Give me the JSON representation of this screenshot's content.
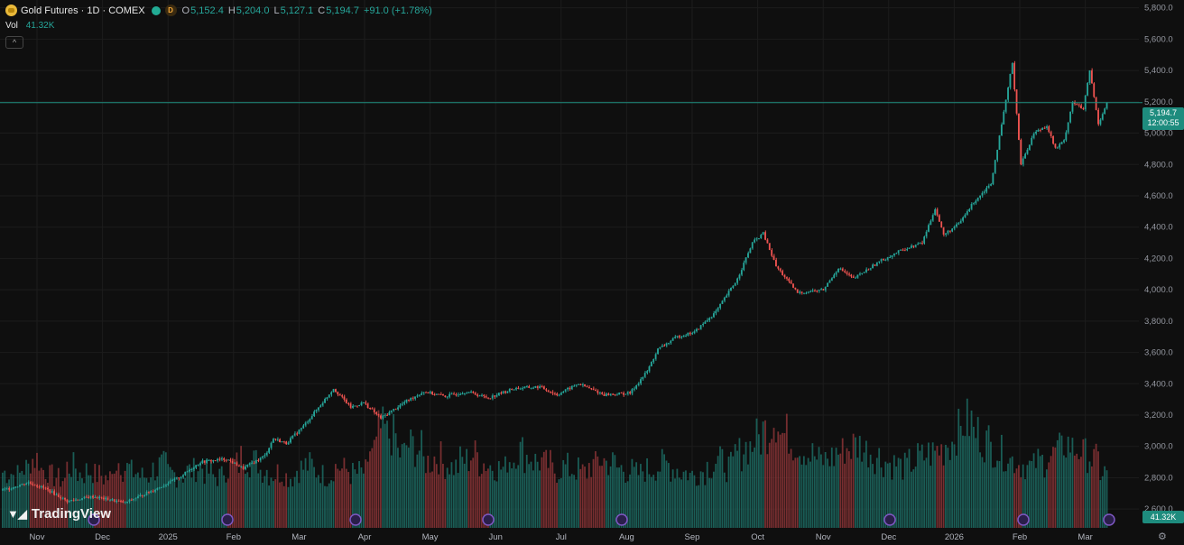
{
  "header": {
    "title": "Gold Futures · 1D · COMEX",
    "d_badge": "D",
    "ohlc": [
      {
        "k": "O",
        "v": "5,152.4"
      },
      {
        "k": "H",
        "v": "5,204.0"
      },
      {
        "k": "L",
        "v": "5,127.1"
      },
      {
        "k": "C",
        "v": "5,194.7"
      },
      {
        "k": "",
        "v": "+91.0 (+1.78%)"
      }
    ]
  },
  "volume_legend": {
    "label": "Vol",
    "value": "41.32K"
  },
  "collapse_icon": "^",
  "price_tag": {
    "price": "5,194.7",
    "countdown": "12:00:55"
  },
  "volume_tag": "41.32K",
  "logo_text": "TradingView",
  "colors": {
    "up": "#26a69a",
    "down": "#ef5350",
    "bg": "#0f0f0f",
    "grid": "#1c1c1c",
    "price_line": "#1e8c7e"
  },
  "chart_data": {
    "type": "candlestick",
    "title": "Gold Futures · 1D · COMEX",
    "ylim": [
      2480,
      5850
    ],
    "y_ticks": [
      "5,800.0",
      "5,600.0",
      "5,400.0",
      "5,200.0",
      "5,000.0",
      "4,800.0",
      "4,600.0",
      "4,400.0",
      "4,200.0",
      "4,000.0",
      "3,800.0",
      "3,600.0",
      "3,400.0",
      "3,200.0",
      "3,000.0",
      "2,800.0",
      "2,600.0"
    ],
    "x_ticks": [
      "Nov",
      "Dec",
      "2025",
      "Feb",
      "Mar",
      "Apr",
      "May",
      "Jun",
      "Jul",
      "Aug",
      "Sep",
      "Oct",
      "Nov",
      "Dec",
      "2026",
      "Feb",
      "Mar"
    ],
    "last_price": 5194.7,
    "price_path": [
      [
        0,
        2720
      ],
      [
        12,
        2770
      ],
      [
        20,
        2730
      ],
      [
        30,
        2650
      ],
      [
        42,
        2680
      ],
      [
        57,
        2640
      ],
      [
        70,
        2720
      ],
      [
        82,
        2800
      ],
      [
        92,
        2900
      ],
      [
        104,
        2920
      ],
      [
        112,
        2860
      ],
      [
        122,
        2940
      ],
      [
        126,
        3050
      ],
      [
        132,
        3020
      ],
      [
        140,
        3130
      ],
      [
        150,
        3300
      ],
      [
        154,
        3370
      ],
      [
        162,
        3250
      ],
      [
        168,
        3280
      ],
      [
        176,
        3180
      ],
      [
        188,
        3290
      ],
      [
        196,
        3350
      ],
      [
        206,
        3320
      ],
      [
        216,
        3350
      ],
      [
        226,
        3310
      ],
      [
        238,
        3370
      ],
      [
        250,
        3380
      ],
      [
        258,
        3330
      ],
      [
        268,
        3400
      ],
      [
        280,
        3330
      ],
      [
        292,
        3340
      ],
      [
        300,
        3480
      ],
      [
        305,
        3620
      ],
      [
        314,
        3700
      ],
      [
        322,
        3730
      ],
      [
        332,
        3860
      ],
      [
        342,
        4070
      ],
      [
        349,
        4300
      ],
      [
        354,
        4360
      ],
      [
        360,
        4150
      ],
      [
        370,
        3980
      ],
      [
        382,
        4000
      ],
      [
        389,
        4140
      ],
      [
        396,
        4070
      ],
      [
        408,
        4180
      ],
      [
        418,
        4250
      ],
      [
        428,
        4300
      ],
      [
        434,
        4520
      ],
      [
        438,
        4350
      ],
      [
        445,
        4420
      ],
      [
        452,
        4560
      ],
      [
        460,
        4680
      ],
      [
        465,
        5050
      ],
      [
        470,
        5450
      ],
      [
        474,
        4800
      ],
      [
        480,
        5000
      ],
      [
        486,
        5050
      ],
      [
        490,
        4900
      ],
      [
        494,
        4950
      ],
      [
        498,
        5200
      ],
      [
        503,
        5150
      ],
      [
        506,
        5400
      ],
      [
        510,
        5060
      ],
      [
        514,
        5194.7
      ]
    ],
    "volume_k": [
      41,
      39,
      44,
      51,
      43,
      38,
      36,
      45,
      40,
      42,
      39,
      37,
      49,
      44,
      41,
      38,
      43,
      46,
      40,
      39,
      42,
      45,
      41,
      38,
      44,
      47,
      52,
      49,
      43,
      40,
      41,
      38,
      44,
      46,
      42,
      39,
      45,
      43,
      40,
      41,
      59,
      72,
      68,
      55,
      61,
      58,
      49,
      52,
      47,
      45,
      50,
      54,
      48,
      46,
      44,
      51,
      57,
      53,
      49,
      47,
      42,
      45,
      43,
      41,
      46,
      50,
      48,
      44,
      42,
      40,
      43,
      45,
      47,
      44,
      41,
      39,
      42,
      46,
      49,
      45,
      55,
      60,
      66,
      72,
      81,
      69,
      63,
      58,
      54,
      50,
      52,
      56,
      59,
      61,
      57,
      53,
      49,
      47,
      45,
      48,
      52,
      55,
      58,
      63,
      71,
      78,
      70,
      64,
      59,
      55,
      50,
      47,
      45,
      49,
      53,
      57,
      62,
      58,
      54,
      50,
      41.32
    ]
  }
}
